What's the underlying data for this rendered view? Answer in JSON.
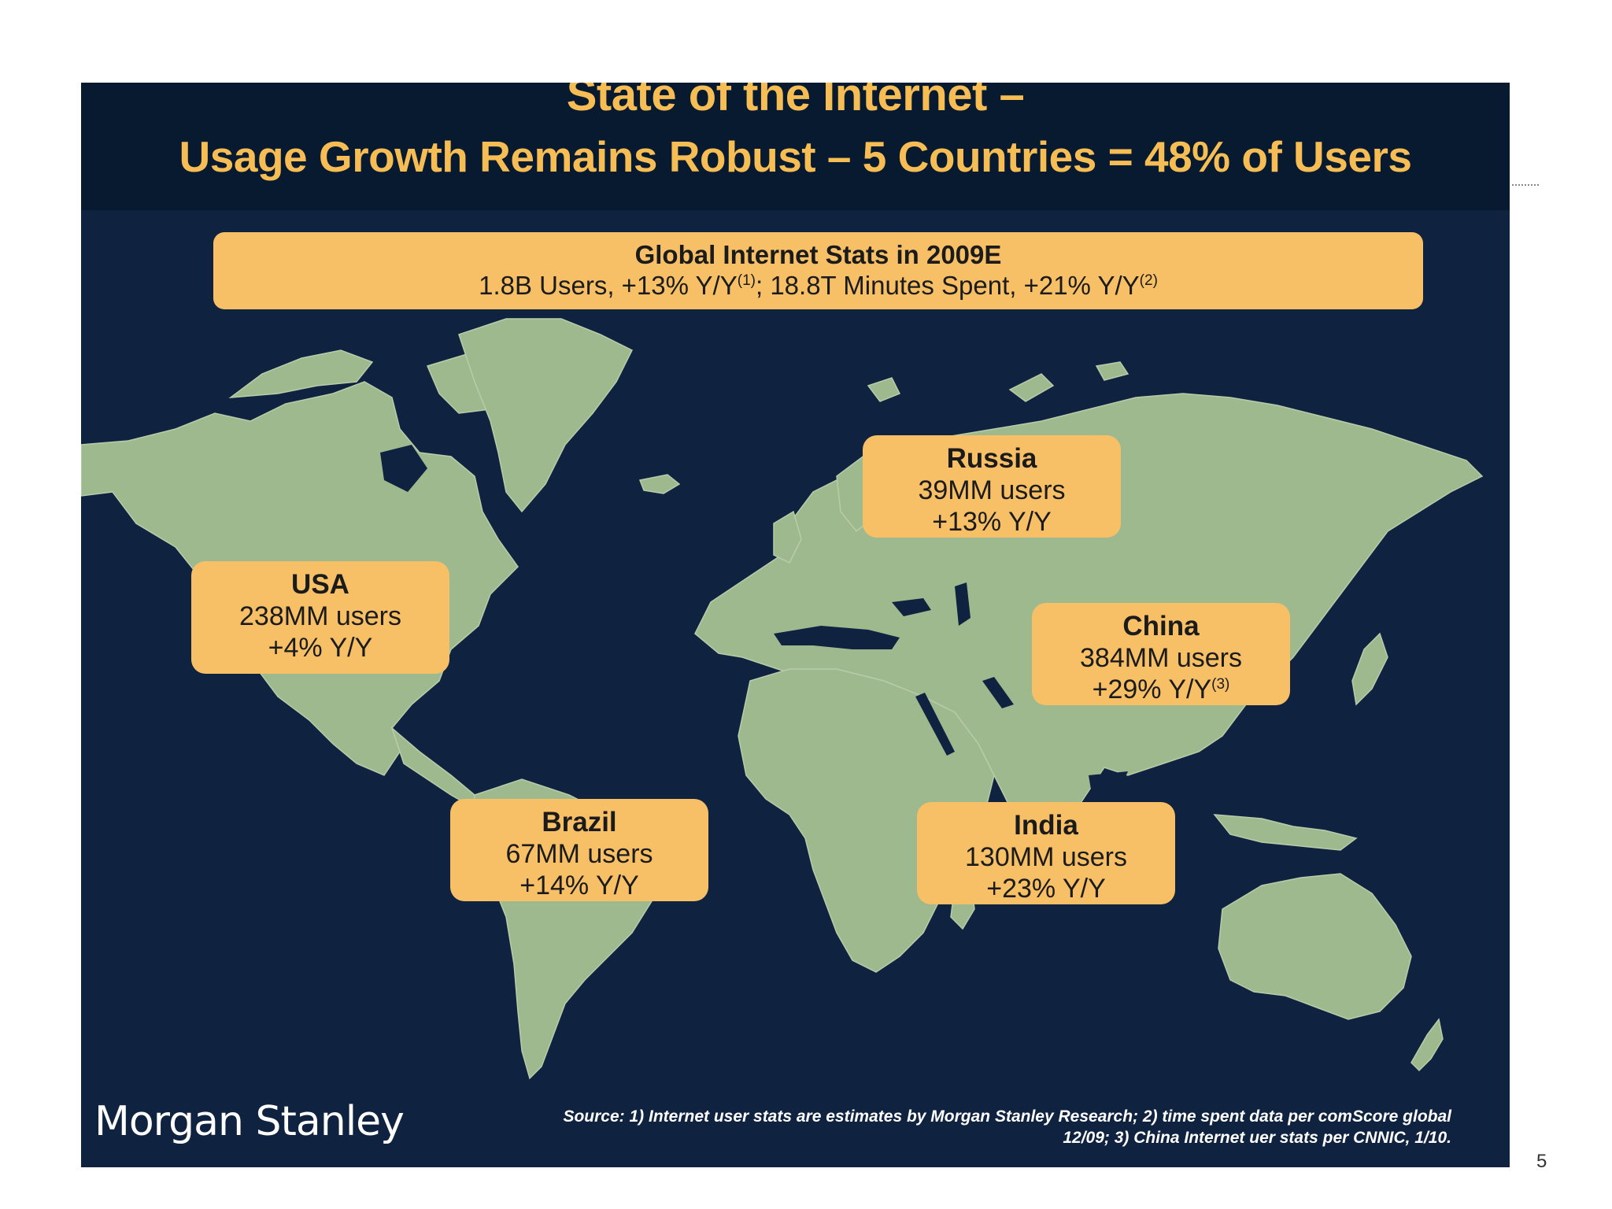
{
  "title": {
    "line1": "State of the Internet –",
    "line2": "Usage Growth Remains Robust – 5 Countries = 48% of Users"
  },
  "global_stats": {
    "heading": "Global Internet Stats in 2009E",
    "users": "1.8B Users, +13% Y/Y",
    "users_note": "(1)",
    "separator": "; ",
    "minutes": "18.8T Minutes Spent, +21% Y/Y",
    "minutes_note": "(2)"
  },
  "countries": [
    {
      "name": "USA",
      "users": "238MM users",
      "growth": "+4% Y/Y",
      "note": ""
    },
    {
      "name": "Russia",
      "users": "39MM users",
      "growth": "+13% Y/Y",
      "note": ""
    },
    {
      "name": "China",
      "users": "384MM users",
      "growth": "+29% Y/Y",
      "note": "(3)"
    },
    {
      "name": "Brazil",
      "users": "67MM users",
      "growth": "+14% Y/Y",
      "note": ""
    },
    {
      "name": "India",
      "users": "130MM users",
      "growth": "+23% Y/Y",
      "note": ""
    }
  ],
  "footer": {
    "logo": "Morgan Stanley",
    "source_line1": "Source: 1) Internet user stats are estimates by Morgan Stanley Research; 2) time spent data per comScore global",
    "source_line2": "12/09; 3) China Internet uer stats per CNNIC, 1/10.",
    "page_number": "5"
  },
  "colors": {
    "background": "#0f2240",
    "title_bar": "#081a30",
    "accent": "#f7bd55",
    "callout": "#f7c067",
    "land": "#9fb98f"
  }
}
